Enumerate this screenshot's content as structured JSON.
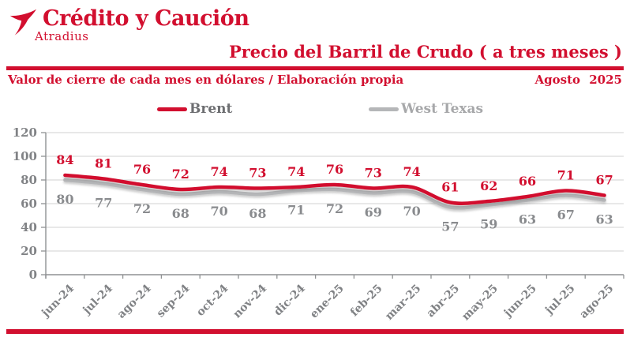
{
  "brand": {
    "company": "Crédito y Caución",
    "subbrand": "Atradius"
  },
  "header": {
    "title": "Precio del Barril de Crudo ( a tres meses )",
    "subtitle": "Valor de cierre de cada mes en dólares / Elaboración propia",
    "date": "Agosto 2025"
  },
  "legend": [
    {
      "label": "Brent",
      "line_color": "#d20f2f",
      "label_color": "#6d6e71"
    },
    {
      "label": "West Texas",
      "line_color": "#b5b6b8",
      "label_color": "#a7a8aa"
    }
  ],
  "colors": {
    "accent": "#d20f2f",
    "gray_line": "#b5b6b8",
    "axis_label": "#808285",
    "data_label_gray": "#898b8e",
    "grid": "#d9d9d9",
    "axis": "#8f9193"
  },
  "chart_data": {
    "type": "line",
    "title": "Precio del Barril de Crudo ( a tres meses )",
    "xlabel": "",
    "ylabel": "",
    "categories": [
      "jun-24",
      "jul-24",
      "ago-24",
      "sep-24",
      "oct-24",
      "nov-24",
      "dic-24",
      "ene-25",
      "feb-25",
      "mar-25",
      "abr-25",
      "may-25",
      "jun-25",
      "jul-25",
      "ago-25"
    ],
    "series": [
      {
        "name": "Brent",
        "color": "#d20f2f",
        "values": [
          84,
          81,
          76,
          72,
          74,
          73,
          74,
          76,
          73,
          74,
          61,
          62,
          66,
          71,
          67
        ]
      },
      {
        "name": "West Texas",
        "color": "#b5b6b8",
        "values": [
          80,
          77,
          72,
          68,
          70,
          68,
          71,
          72,
          69,
          70,
          57,
          59,
          63,
          67,
          63
        ]
      }
    ],
    "ylim": [
      0,
      120
    ],
    "yticks": [
      0,
      20,
      40,
      60,
      80,
      100,
      120
    ],
    "grid": true,
    "legend_position": "top",
    "data_labels": true
  }
}
